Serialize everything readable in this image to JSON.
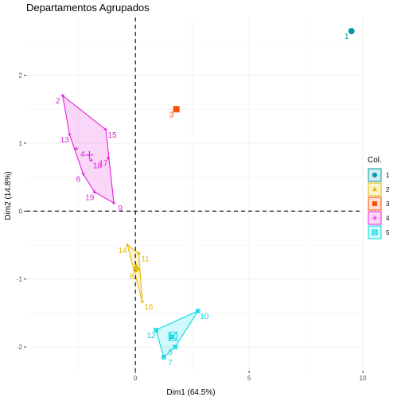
{
  "chart_data": {
    "type": "scatter",
    "title": "Departamentos Agrupados",
    "xlabel": "Dim1 (64.5%)",
    "ylabel": "Dim2 (14.8%)",
    "xlim": [
      -4.8,
      10.0
    ],
    "ylim": [
      -2.35,
      2.85
    ],
    "x_ticks": [
      0,
      5,
      10
    ],
    "y_ticks": [
      -2,
      -1,
      0,
      1,
      2
    ],
    "grid": true,
    "reference_lines": {
      "x": 0,
      "y": 0
    },
    "legend": {
      "title": "Col.",
      "position": "right"
    },
    "series": [
      {
        "name": "1",
        "color": "#0097A7",
        "marker": "circle",
        "points": [
          {
            "label": "1",
            "x": 9.5,
            "y": 2.65
          }
        ]
      },
      {
        "name": "2",
        "color": "#E7B800",
        "marker": "triangle",
        "points": [
          {
            "label": "14",
            "x": -0.35,
            "y": -0.5
          },
          {
            "label": "11",
            "x": 0.15,
            "y": -0.62
          },
          {
            "label": "8",
            "x": 0.05,
            "y": -0.88
          },
          {
            "label": "16",
            "x": 0.3,
            "y": -1.33
          }
        ]
      },
      {
        "name": "3",
        "color": "#FC4E07",
        "marker": "square",
        "points": [
          {
            "label": "3",
            "x": 1.8,
            "y": 1.5
          }
        ]
      },
      {
        "name": "4",
        "color": "#E321D8",
        "marker": "plus",
        "points": [
          {
            "label": "2",
            "x": -3.2,
            "y": 1.7
          },
          {
            "label": "15",
            "x": -1.3,
            "y": 1.2
          },
          {
            "label": "13",
            "x": -2.9,
            "y": 1.13
          },
          {
            "label": "4",
            "x": -2.6,
            "y": 0.92
          },
          {
            "label": "17",
            "x": -1.2,
            "y": 0.78
          },
          {
            "label": "18",
            "x": -1.95,
            "y": 0.75
          },
          {
            "label": "6",
            "x": -2.3,
            "y": 0.55
          },
          {
            "label": "9",
            "x": -0.95,
            "y": 0.12
          },
          {
            "label": "19",
            "x": -1.8,
            "y": 0.28
          }
        ]
      },
      {
        "name": "5",
        "color": "#00D8E6",
        "marker": "box",
        "points": [
          {
            "label": "12",
            "x": 0.9,
            "y": -1.75
          },
          {
            "label": "10",
            "x": 2.75,
            "y": -1.47
          },
          {
            "label": "5",
            "x": 1.75,
            "y": -2.0
          },
          {
            "label": "7",
            "x": 1.25,
            "y": -2.15
          },
          {
            "label": "",
            "x": 1.6,
            "y": -1.85
          }
        ]
      }
    ]
  }
}
